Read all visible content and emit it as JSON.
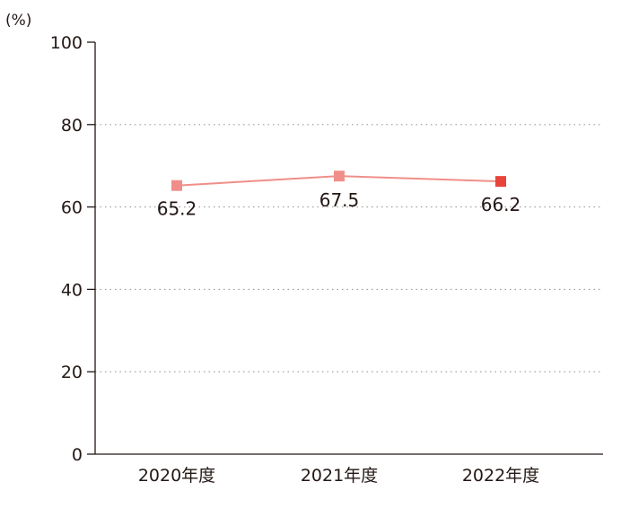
{
  "chart_data": {
    "type": "line",
    "title": "",
    "xlabel": "",
    "ylabel": "",
    "y_unit": "(%)",
    "categories": [
      "2020年度",
      "2021年度",
      "2022年度"
    ],
    "values": [
      65.2,
      67.5,
      66.2
    ],
    "data_labels": [
      "65.2",
      "67.5",
      "66.2"
    ],
    "ylim": [
      0,
      100
    ],
    "y_ticks": [
      0,
      20,
      40,
      60,
      80,
      100
    ],
    "y_tick_labels": [
      "0",
      "20",
      "40",
      "60",
      "80",
      "100"
    ],
    "grid": true,
    "legend": "none",
    "colors": {
      "line": "#f08f8a",
      "marker": "#f08f8a",
      "marker_highlight": "#e8443a",
      "axis": "#231815",
      "grid": "#9a9a9a"
    },
    "highlight_index": 2
  }
}
